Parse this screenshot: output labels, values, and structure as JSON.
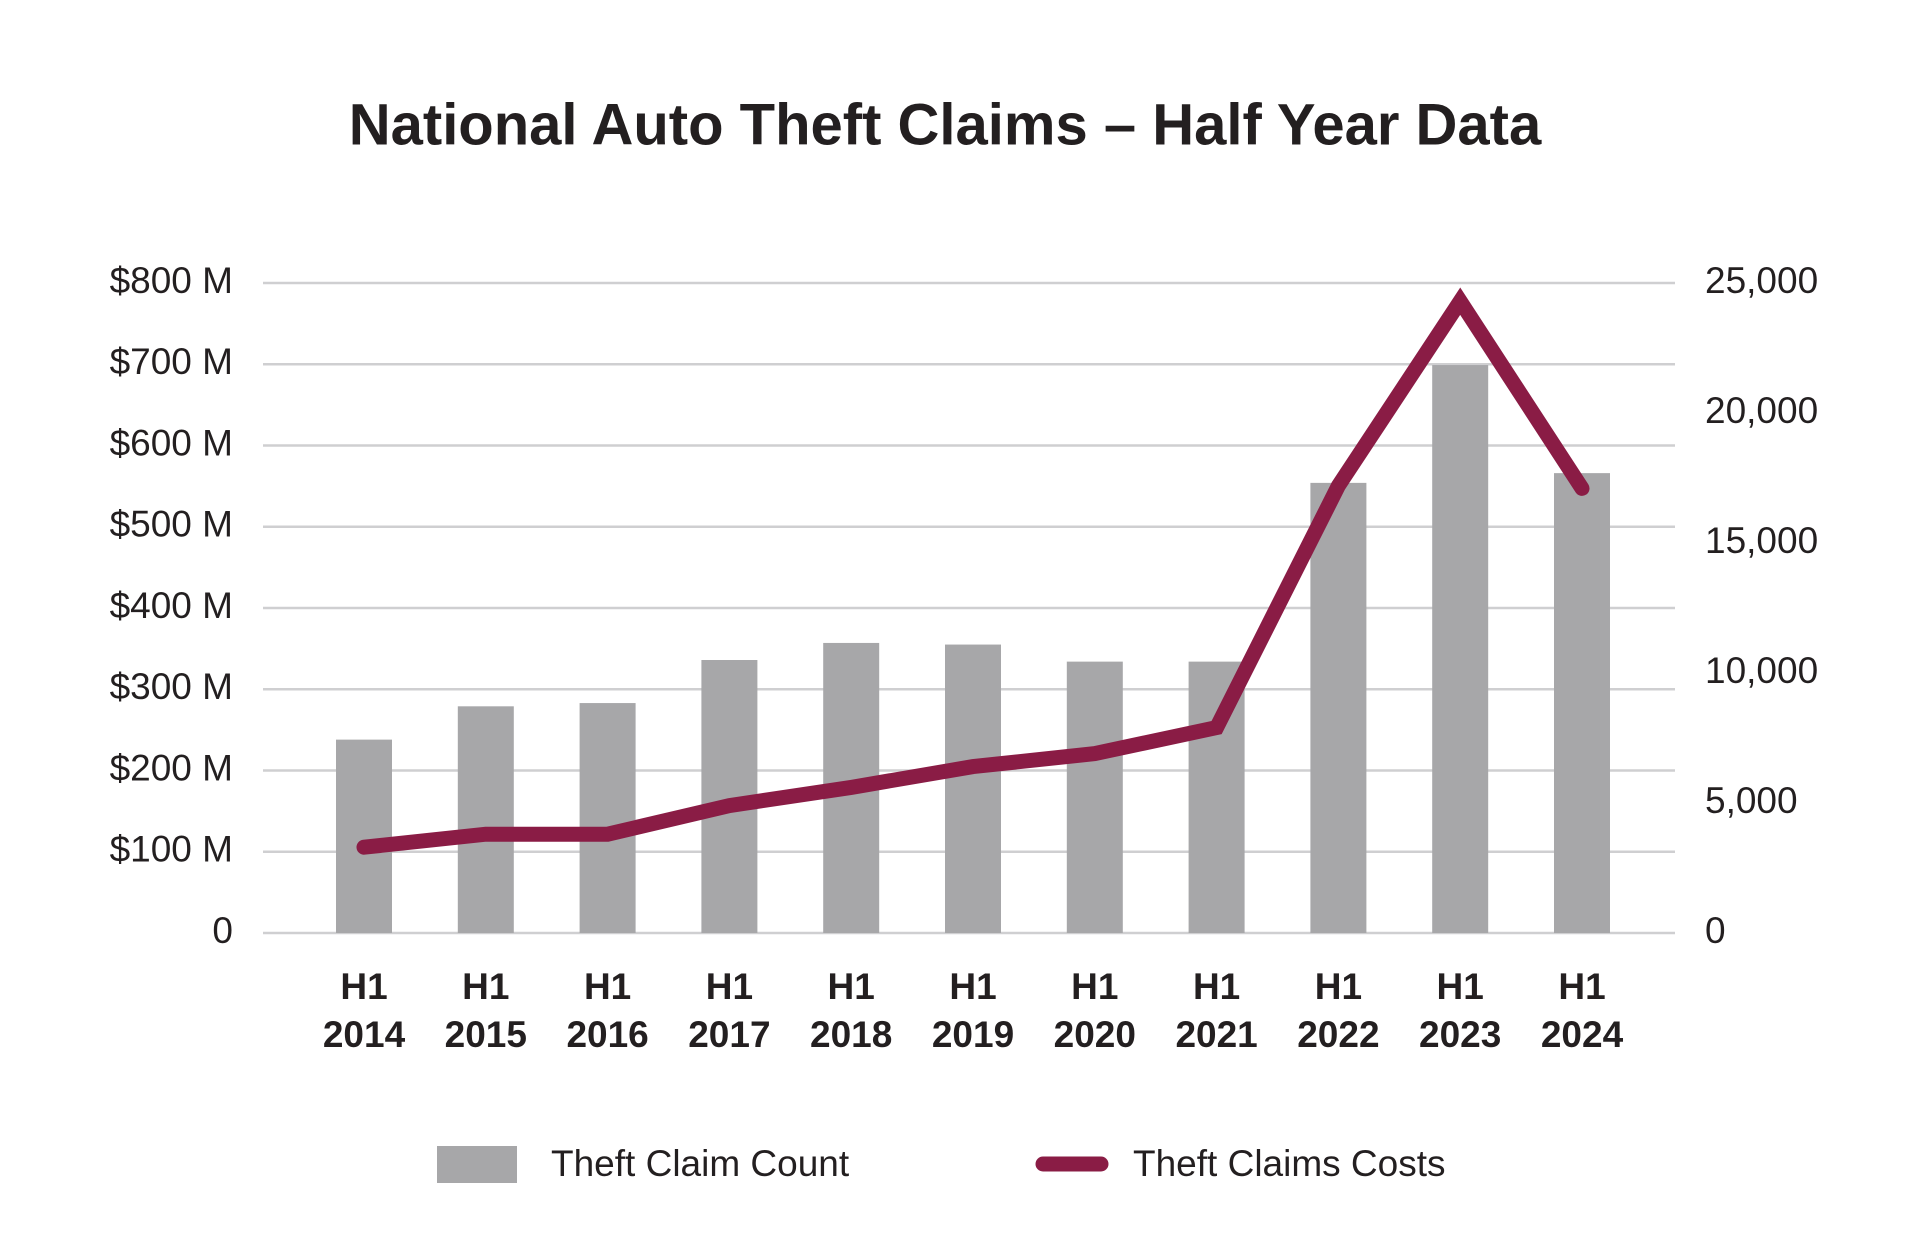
{
  "chart_data": {
    "type": "bar-line",
    "title": "National Auto Theft Claims – Half Year Data",
    "categories": [
      "H1 2014",
      "H1 2015",
      "H1 2016",
      "H1 2017",
      "H1 2018",
      "H1 2019",
      "H1 2020",
      "H1 2021",
      "H1 2022",
      "H1 2023",
      "H1 2024"
    ],
    "series": [
      {
        "name": "Theft Claim Count",
        "type": "bar",
        "color": "#a7a7a9",
        "values": [
          238,
          279,
          283,
          336,
          357,
          355,
          334,
          334,
          554,
          699,
          566
        ]
      },
      {
        "name": "Theft Claims Costs",
        "type": "line",
        "axis": "y2",
        "color": "#8a1c45",
        "values": [
          3300,
          3800,
          3800,
          4900,
          5600,
          6400,
          6900,
          7900,
          17200,
          24300,
          17100
        ]
      }
    ],
    "ylim": [
      0,
      800
    ],
    "yticks": [
      0,
      {
        "value": 100,
        "label": "$100 M"
      },
      {
        "value": 200,
        "label": "$200 M"
      },
      {
        "value": 300,
        "label": "$300 M"
      },
      {
        "value": 400,
        "label": "$400 M"
      },
      {
        "value": 500,
        "label": "$500 M"
      },
      {
        "value": 600,
        "label": "$600 M"
      },
      {
        "value": 700,
        "label": "$700 M"
      },
      {
        "value": 800,
        "label": "$800 M"
      }
    ],
    "y2lim": [
      0,
      25000
    ],
    "y2ticks": [
      0,
      {
        "value": 5000,
        "label": "5,000"
      },
      {
        "value": 10000,
        "label": "10,000"
      },
      {
        "value": 15000,
        "label": "15,000"
      },
      {
        "value": 20000,
        "label": "20,000"
      },
      {
        "value": 25000,
        "label": "25,000"
      }
    ],
    "grid": true,
    "legend": "bottom"
  }
}
